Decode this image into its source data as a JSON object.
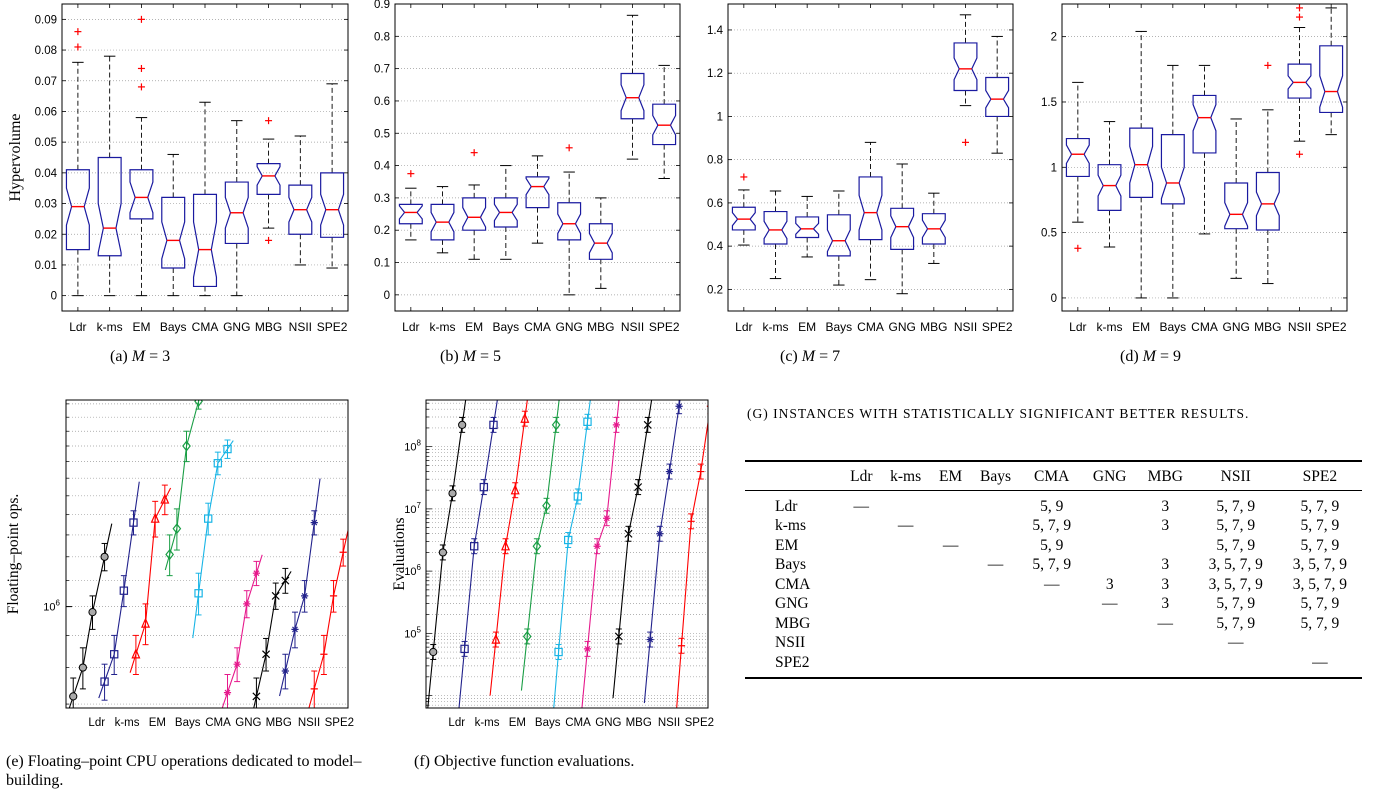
{
  "categories": [
    "Ldr",
    "k-ms",
    "EM",
    "Bays",
    "CMA",
    "GNG",
    "MBG",
    "NSII",
    "SPE2"
  ],
  "colors": {
    "box": "#1a1aa0",
    "median": "#ff0000",
    "outlier": "#ff0000",
    "whisker": "#000000",
    "grid": "#9a9a9a"
  },
  "captions": {
    "a": "(a) M = 3",
    "b": "(b) M = 5",
    "c": "(c) M = 7",
    "d": "(d) M = 9",
    "e": "(e) Floating–point CPU operations dedicated to model–building.",
    "f": "(f) Objective function evaluations.",
    "g": "(g) Instances with statistically significant better results."
  },
  "chart_data": [
    {
      "id": "a",
      "type": "box",
      "ylabel": "Hypervolume",
      "ylim": [
        -0.005,
        0.095
      ],
      "yticks": [
        0,
        0.01,
        0.02,
        0.03,
        0.04,
        0.05,
        0.06,
        0.07,
        0.08,
        0.09
      ],
      "ytick_labels": [
        "0",
        "0.01",
        "0.02",
        "0.03",
        "0.04",
        "0.05",
        "0.06",
        "0.07",
        "0.08",
        "0.09"
      ],
      "boxes": [
        {
          "q1": 0.015,
          "med": 0.029,
          "q3": 0.041,
          "lo": 0,
          "hi": 0.076,
          "n": 0.006,
          "out": [
            0.081,
            0.086
          ]
        },
        {
          "q1": 0.013,
          "med": 0.022,
          "q3": 0.045,
          "lo": 0,
          "hi": 0.078,
          "n": 0.008,
          "out": []
        },
        {
          "q1": 0.025,
          "med": 0.032,
          "q3": 0.041,
          "lo": 0,
          "hi": 0.058,
          "n": 0.005,
          "out": [
            0.068,
            0.074,
            0.09
          ]
        },
        {
          "q1": 0.009,
          "med": 0.018,
          "q3": 0.032,
          "lo": 0,
          "hi": 0.046,
          "n": 0.006,
          "out": []
        },
        {
          "q1": 0.003,
          "med": 0.015,
          "q3": 0.033,
          "lo": 0,
          "hi": 0.063,
          "n": 0.009,
          "out": []
        },
        {
          "q1": 0.017,
          "med": 0.027,
          "q3": 0.037,
          "lo": 0,
          "hi": 0.057,
          "n": 0.005,
          "out": []
        },
        {
          "q1": 0.033,
          "med": 0.039,
          "q3": 0.043,
          "lo": 0.022,
          "hi": 0.051,
          "n": 0.003,
          "out": [
            0.018,
            0.057
          ]
        },
        {
          "q1": 0.02,
          "med": 0.028,
          "q3": 0.036,
          "lo": 0.01,
          "hi": 0.052,
          "n": 0.004,
          "out": []
        },
        {
          "q1": 0.019,
          "med": 0.028,
          "q3": 0.04,
          "lo": 0.009,
          "hi": 0.069,
          "n": 0.005,
          "out": []
        }
      ]
    },
    {
      "id": "b",
      "type": "box",
      "ylabel": "",
      "ylim": [
        -0.05,
        0.9
      ],
      "yticks": [
        0,
        0.1,
        0.2,
        0.3,
        0.4,
        0.5,
        0.6,
        0.7,
        0.8,
        0.9
      ],
      "ytick_labels": [
        "0",
        "0.1",
        "0.2",
        "0.3",
        "0.4",
        "0.5",
        "0.6",
        "0.7",
        "0.8",
        "0.9"
      ],
      "boxes": [
        {
          "q1": 0.22,
          "med": 0.255,
          "q3": 0.28,
          "lo": 0.17,
          "hi": 0.33,
          "n": 0.02,
          "out": [
            0.375
          ]
        },
        {
          "q1": 0.17,
          "med": 0.225,
          "q3": 0.28,
          "lo": 0.13,
          "hi": 0.335,
          "n": 0.03,
          "out": []
        },
        {
          "q1": 0.2,
          "med": 0.24,
          "q3": 0.3,
          "lo": 0.11,
          "hi": 0.34,
          "n": 0.03,
          "out": [
            0.44
          ]
        },
        {
          "q1": 0.21,
          "med": 0.255,
          "q3": 0.3,
          "lo": 0.11,
          "hi": 0.4,
          "n": 0.025,
          "out": []
        },
        {
          "q1": 0.27,
          "med": 0.335,
          "q3": 0.365,
          "lo": 0.16,
          "hi": 0.43,
          "n": 0.025,
          "out": []
        },
        {
          "q1": 0.17,
          "med": 0.22,
          "q3": 0.285,
          "lo": 0,
          "hi": 0.38,
          "n": 0.03,
          "out": [
            0.455
          ]
        },
        {
          "q1": 0.11,
          "med": 0.16,
          "q3": 0.22,
          "lo": 0.02,
          "hi": 0.3,
          "n": 0.03,
          "out": []
        },
        {
          "q1": 0.545,
          "med": 0.61,
          "q3": 0.685,
          "lo": 0.42,
          "hi": 0.865,
          "n": 0.04,
          "out": []
        },
        {
          "q1": 0.465,
          "med": 0.525,
          "q3": 0.59,
          "lo": 0.36,
          "hi": 0.71,
          "n": 0.03,
          "out": []
        }
      ]
    },
    {
      "id": "c",
      "type": "box",
      "ylabel": "",
      "ylim": [
        0.1,
        1.52
      ],
      "yticks": [
        0.2,
        0.4,
        0.6,
        0.8,
        1,
        1.2,
        1.4
      ],
      "ytick_labels": [
        "0.2",
        "0.4",
        "0.6",
        "0.8",
        "1",
        "1.2",
        "1.4"
      ],
      "boxes": [
        {
          "q1": 0.475,
          "med": 0.525,
          "q3": 0.58,
          "lo": 0.405,
          "hi": 0.66,
          "n": 0.03,
          "out": [
            0.72
          ]
        },
        {
          "q1": 0.41,
          "med": 0.475,
          "q3": 0.56,
          "lo": 0.25,
          "hi": 0.655,
          "n": 0.04,
          "out": []
        },
        {
          "q1": 0.44,
          "med": 0.48,
          "q3": 0.535,
          "lo": 0.35,
          "hi": 0.63,
          "n": 0.025,
          "out": []
        },
        {
          "q1": 0.355,
          "med": 0.425,
          "q3": 0.545,
          "lo": 0.22,
          "hi": 0.655,
          "n": 0.05,
          "out": []
        },
        {
          "q1": 0.43,
          "med": 0.555,
          "q3": 0.72,
          "lo": 0.245,
          "hi": 0.88,
          "n": 0.08,
          "out": []
        },
        {
          "q1": 0.385,
          "med": 0.49,
          "q3": 0.575,
          "lo": 0.18,
          "hi": 0.78,
          "n": 0.05,
          "out": []
        },
        {
          "q1": 0.41,
          "med": 0.48,
          "q3": 0.55,
          "lo": 0.32,
          "hi": 0.645,
          "n": 0.04,
          "out": []
        },
        {
          "q1": 1.12,
          "med": 1.22,
          "q3": 1.34,
          "lo": 1.05,
          "hi": 1.47,
          "n": 0.05,
          "out": [
            0.88
          ]
        },
        {
          "q1": 1,
          "med": 1.08,
          "q3": 1.18,
          "lo": 0.83,
          "hi": 1.37,
          "n": 0.04,
          "out": []
        }
      ]
    },
    {
      "id": "d",
      "type": "box",
      "ylabel": "",
      "ylim": [
        -0.1,
        2.25
      ],
      "yticks": [
        0,
        0.5,
        1,
        1.5,
        2
      ],
      "ytick_labels": [
        "0",
        "0.5",
        "1",
        "1.5",
        "2"
      ],
      "boxes": [
        {
          "q1": 0.93,
          "med": 1.1,
          "q3": 1.22,
          "lo": 0.58,
          "hi": 1.65,
          "n": 0.07,
          "out": [
            0.38
          ]
        },
        {
          "q1": 0.67,
          "med": 0.86,
          "q3": 1.02,
          "lo": 0.39,
          "hi": 1.35,
          "n": 0.08,
          "out": []
        },
        {
          "q1": 0.77,
          "med": 1.02,
          "q3": 1.3,
          "lo": 0,
          "hi": 2.04,
          "n": 0.14,
          "out": []
        },
        {
          "q1": 0.72,
          "med": 0.88,
          "q3": 1.25,
          "lo": 0,
          "hi": 1.78,
          "n": 0.12,
          "out": []
        },
        {
          "q1": 1.11,
          "med": 1.38,
          "q3": 1.55,
          "lo": 0.49,
          "hi": 1.78,
          "n": 0.1,
          "out": []
        },
        {
          "q1": 0.53,
          "med": 0.64,
          "q3": 0.88,
          "lo": 0.15,
          "hi": 1.37,
          "n": 0.09,
          "out": []
        },
        {
          "q1": 0.52,
          "med": 0.72,
          "q3": 0.96,
          "lo": 0.11,
          "hi": 1.44,
          "n": 0.09,
          "out": [
            1.78
          ]
        },
        {
          "q1": 1.53,
          "med": 1.65,
          "q3": 1.79,
          "lo": 1.2,
          "hi": 2.07,
          "n": 0.05,
          "out": [
            1.1,
            2.15,
            2.22
          ]
        },
        {
          "q1": 1.42,
          "med": 1.58,
          "q3": 1.93,
          "lo": 1.25,
          "hi": 2.22,
          "n": 0.12,
          "out": []
        }
      ]
    },
    {
      "id": "e",
      "type": "line",
      "ylabel": "Floating–point ops.",
      "yscale": "log",
      "ylim": [
        6.9,
        21.3
      ],
      "ytick_label": "10^6",
      "series": [
        {
          "name": "Ldr",
          "color": "#000000",
          "marker": "circle",
          "x": [
            0,
            0.4,
            0.8,
            1.3
          ],
          "y": [
            7.2,
            8.0,
            9.8,
            12.0
          ],
          "err": [
            0.5,
            0.6,
            0.6,
            0.6
          ]
        },
        {
          "name": "k-ms",
          "color": "#22228c",
          "marker": "square",
          "x": [
            1.3,
            1.7,
            2.1,
            2.5
          ],
          "y": [
            7.6,
            8.4,
            10.6,
            13.6
          ],
          "err": [
            0.5,
            0.6,
            0.6,
            0.6
          ]
        },
        {
          "name": "EM",
          "color": "#ff0000",
          "marker": "triangle",
          "x": [
            2.6,
            3.0,
            3.4,
            3.8
          ],
          "y": [
            8.4,
            9.4,
            13.8,
            14.8
          ],
          "err": [
            0.6,
            0.7,
            0.9,
            0.8
          ]
        },
        {
          "name": "Bays",
          "color": "#1a9e45",
          "marker": "diamond",
          "x": [
            4.0,
            4.3,
            4.7,
            5.2
          ],
          "y": [
            12.1,
            13.3,
            18.0,
            21.2
          ],
          "err": [
            0.9,
            1.0,
            1.0,
            0.6
          ]
        },
        {
          "name": "CMA",
          "color": "#19b5e6",
          "marker": "square",
          "x": [
            5.2,
            5.6,
            6.0,
            6.4
          ],
          "y": [
            10.5,
            13.8,
            16.9,
            17.8
          ],
          "err": [
            0.8,
            0.8,
            0.7,
            0.6
          ]
        },
        {
          "name": "GNG",
          "color": "#e6198c",
          "marker": "star",
          "x": [
            6.4,
            6.8,
            7.2,
            7.6
          ],
          "y": [
            7.3,
            8.1,
            10.1,
            11.3
          ],
          "err": [
            0.5,
            0.5,
            0.5,
            0.5
          ]
        },
        {
          "name": "MBG",
          "color": "#000000",
          "marker": "x",
          "x": [
            7.6,
            8.0,
            8.4,
            8.8
          ],
          "y": [
            7.2,
            8.4,
            10.4,
            11.0
          ],
          "err": [
            0.5,
            0.5,
            0.5,
            0.5
          ]
        },
        {
          "name": "NSII",
          "color": "#22228c",
          "marker": "asterisk",
          "x": [
            8.8,
            9.2,
            9.6,
            10.0
          ],
          "y": [
            7.9,
            9.2,
            10.4,
            13.6
          ],
          "err": [
            0.5,
            0.6,
            0.6,
            0.6
          ]
        },
        {
          "name": "SPE2",
          "color": "#ff0000",
          "marker": "plus",
          "x": [
            10.0,
            10.4,
            10.8,
            11.2
          ],
          "y": [
            7.4,
            8.4,
            10.4,
            12.2
          ],
          "err": [
            0.5,
            0.6,
            0.6,
            0.6
          ]
        }
      ]
    },
    {
      "id": "f",
      "type": "line",
      "ylabel": "Evaluations",
      "yscale": "log",
      "ylim": [
        3.8,
        8.75
      ],
      "ytick_labels": [
        "10^5",
        "10^6",
        "10^7",
        "10^8"
      ],
      "series": [
        {
          "name": "Ldr",
          "color": "#000000",
          "marker": "circle",
          "x": [
            0,
            0.4,
            0.8,
            1.2
          ],
          "y": [
            4.7,
            6.3,
            7.25,
            8.35
          ],
          "err": [
            0.12,
            0.12,
            0.12,
            0.12
          ]
        },
        {
          "name": "k-ms",
          "color": "#22228c",
          "marker": "square",
          "x": [
            1.3,
            1.7,
            2.1,
            2.5
          ],
          "y": [
            4.75,
            6.4,
            7.35,
            8.35
          ],
          "err": [
            0.12,
            0.12,
            0.12,
            0.12
          ]
        },
        {
          "name": "EM",
          "color": "#ff0000",
          "marker": "triangle",
          "x": [
            2.6,
            3.0,
            3.4,
            3.8
          ],
          "y": [
            4.9,
            6.4,
            7.3,
            8.45
          ],
          "err": [
            0.12,
            0.12,
            0.12,
            0.12
          ]
        },
        {
          "name": "Bays",
          "color": "#1a9e45",
          "marker": "diamond",
          "x": [
            3.9,
            4.3,
            4.7,
            5.1
          ],
          "y": [
            4.95,
            6.4,
            7.05,
            8.35
          ],
          "err": [
            0.12,
            0.12,
            0.12,
            0.12
          ]
        },
        {
          "name": "CMA",
          "color": "#19b5e6",
          "marker": "square",
          "x": [
            5.2,
            5.6,
            6.0,
            6.4
          ],
          "y": [
            4.7,
            6.5,
            7.2,
            8.4
          ],
          "err": [
            0.12,
            0.12,
            0.12,
            0.12
          ]
        },
        {
          "name": "GNG",
          "color": "#e6198c",
          "marker": "star",
          "x": [
            6.4,
            6.8,
            7.2,
            7.6
          ],
          "y": [
            4.75,
            6.4,
            6.85,
            8.35
          ],
          "err": [
            0.12,
            0.12,
            0.12,
            0.12
          ]
        },
        {
          "name": "MBG",
          "color": "#000000",
          "marker": "x",
          "x": [
            7.7,
            8.1,
            8.5,
            8.9
          ],
          "y": [
            4.95,
            6.6,
            7.35,
            8.35
          ],
          "err": [
            0.12,
            0.12,
            0.12,
            0.12
          ]
        },
        {
          "name": "NSII",
          "color": "#22228c",
          "marker": "asterisk",
          "x": [
            9.0,
            9.4,
            9.8,
            10.2
          ],
          "y": [
            4.9,
            6.6,
            7.6,
            8.65
          ],
          "err": [
            0.12,
            0.12,
            0.12,
            0.12
          ]
        },
        {
          "name": "SPE2",
          "color": "#ff0000",
          "marker": "plus",
          "x": [
            10.3,
            10.7,
            11.1,
            11.5
          ],
          "y": [
            4.8,
            6.8,
            7.6,
            8.65
          ],
          "err": [
            0.12,
            0.12,
            0.12,
            0.12
          ]
        }
      ]
    }
  ],
  "table": {
    "columns": [
      "",
      "Ldr",
      "k-ms",
      "EM",
      "Bays",
      "CMA",
      "GNG",
      "MBG",
      "NSII",
      "SPE2"
    ],
    "rows": [
      [
        "Ldr",
        "—",
        "",
        "",
        "",
        "5, 9",
        "",
        "3",
        "5, 7, 9",
        "5, 7, 9"
      ],
      [
        "k-ms",
        "",
        "—",
        "",
        "",
        "5, 7, 9",
        "",
        "3",
        "5, 7, 9",
        "5, 7, 9"
      ],
      [
        "EM",
        "",
        "",
        "—",
        "",
        "5, 9",
        "",
        "",
        "5, 7, 9",
        "5, 7, 9"
      ],
      [
        "Bays",
        "",
        "",
        "",
        "—",
        "5, 7, 9",
        "",
        "3",
        "3, 5, 7, 9",
        "3, 5, 7, 9"
      ],
      [
        "CMA",
        "",
        "",
        "",
        "",
        "—",
        "3",
        "3",
        "3, 5, 7, 9",
        "3, 5, 7, 9"
      ],
      [
        "GNG",
        "",
        "",
        "",
        "",
        "",
        "—",
        "3",
        "5, 7, 9",
        "5, 7, 9"
      ],
      [
        "MBG",
        "",
        "",
        "",
        "",
        "",
        "",
        "—",
        "5, 7, 9",
        "5, 7, 9"
      ],
      [
        "NSII",
        "",
        "",
        "",
        "",
        "",
        "",
        "",
        "—",
        ""
      ],
      [
        "SPE2",
        "",
        "",
        "",
        "",
        "",
        "",
        "",
        "",
        "—"
      ]
    ]
  }
}
